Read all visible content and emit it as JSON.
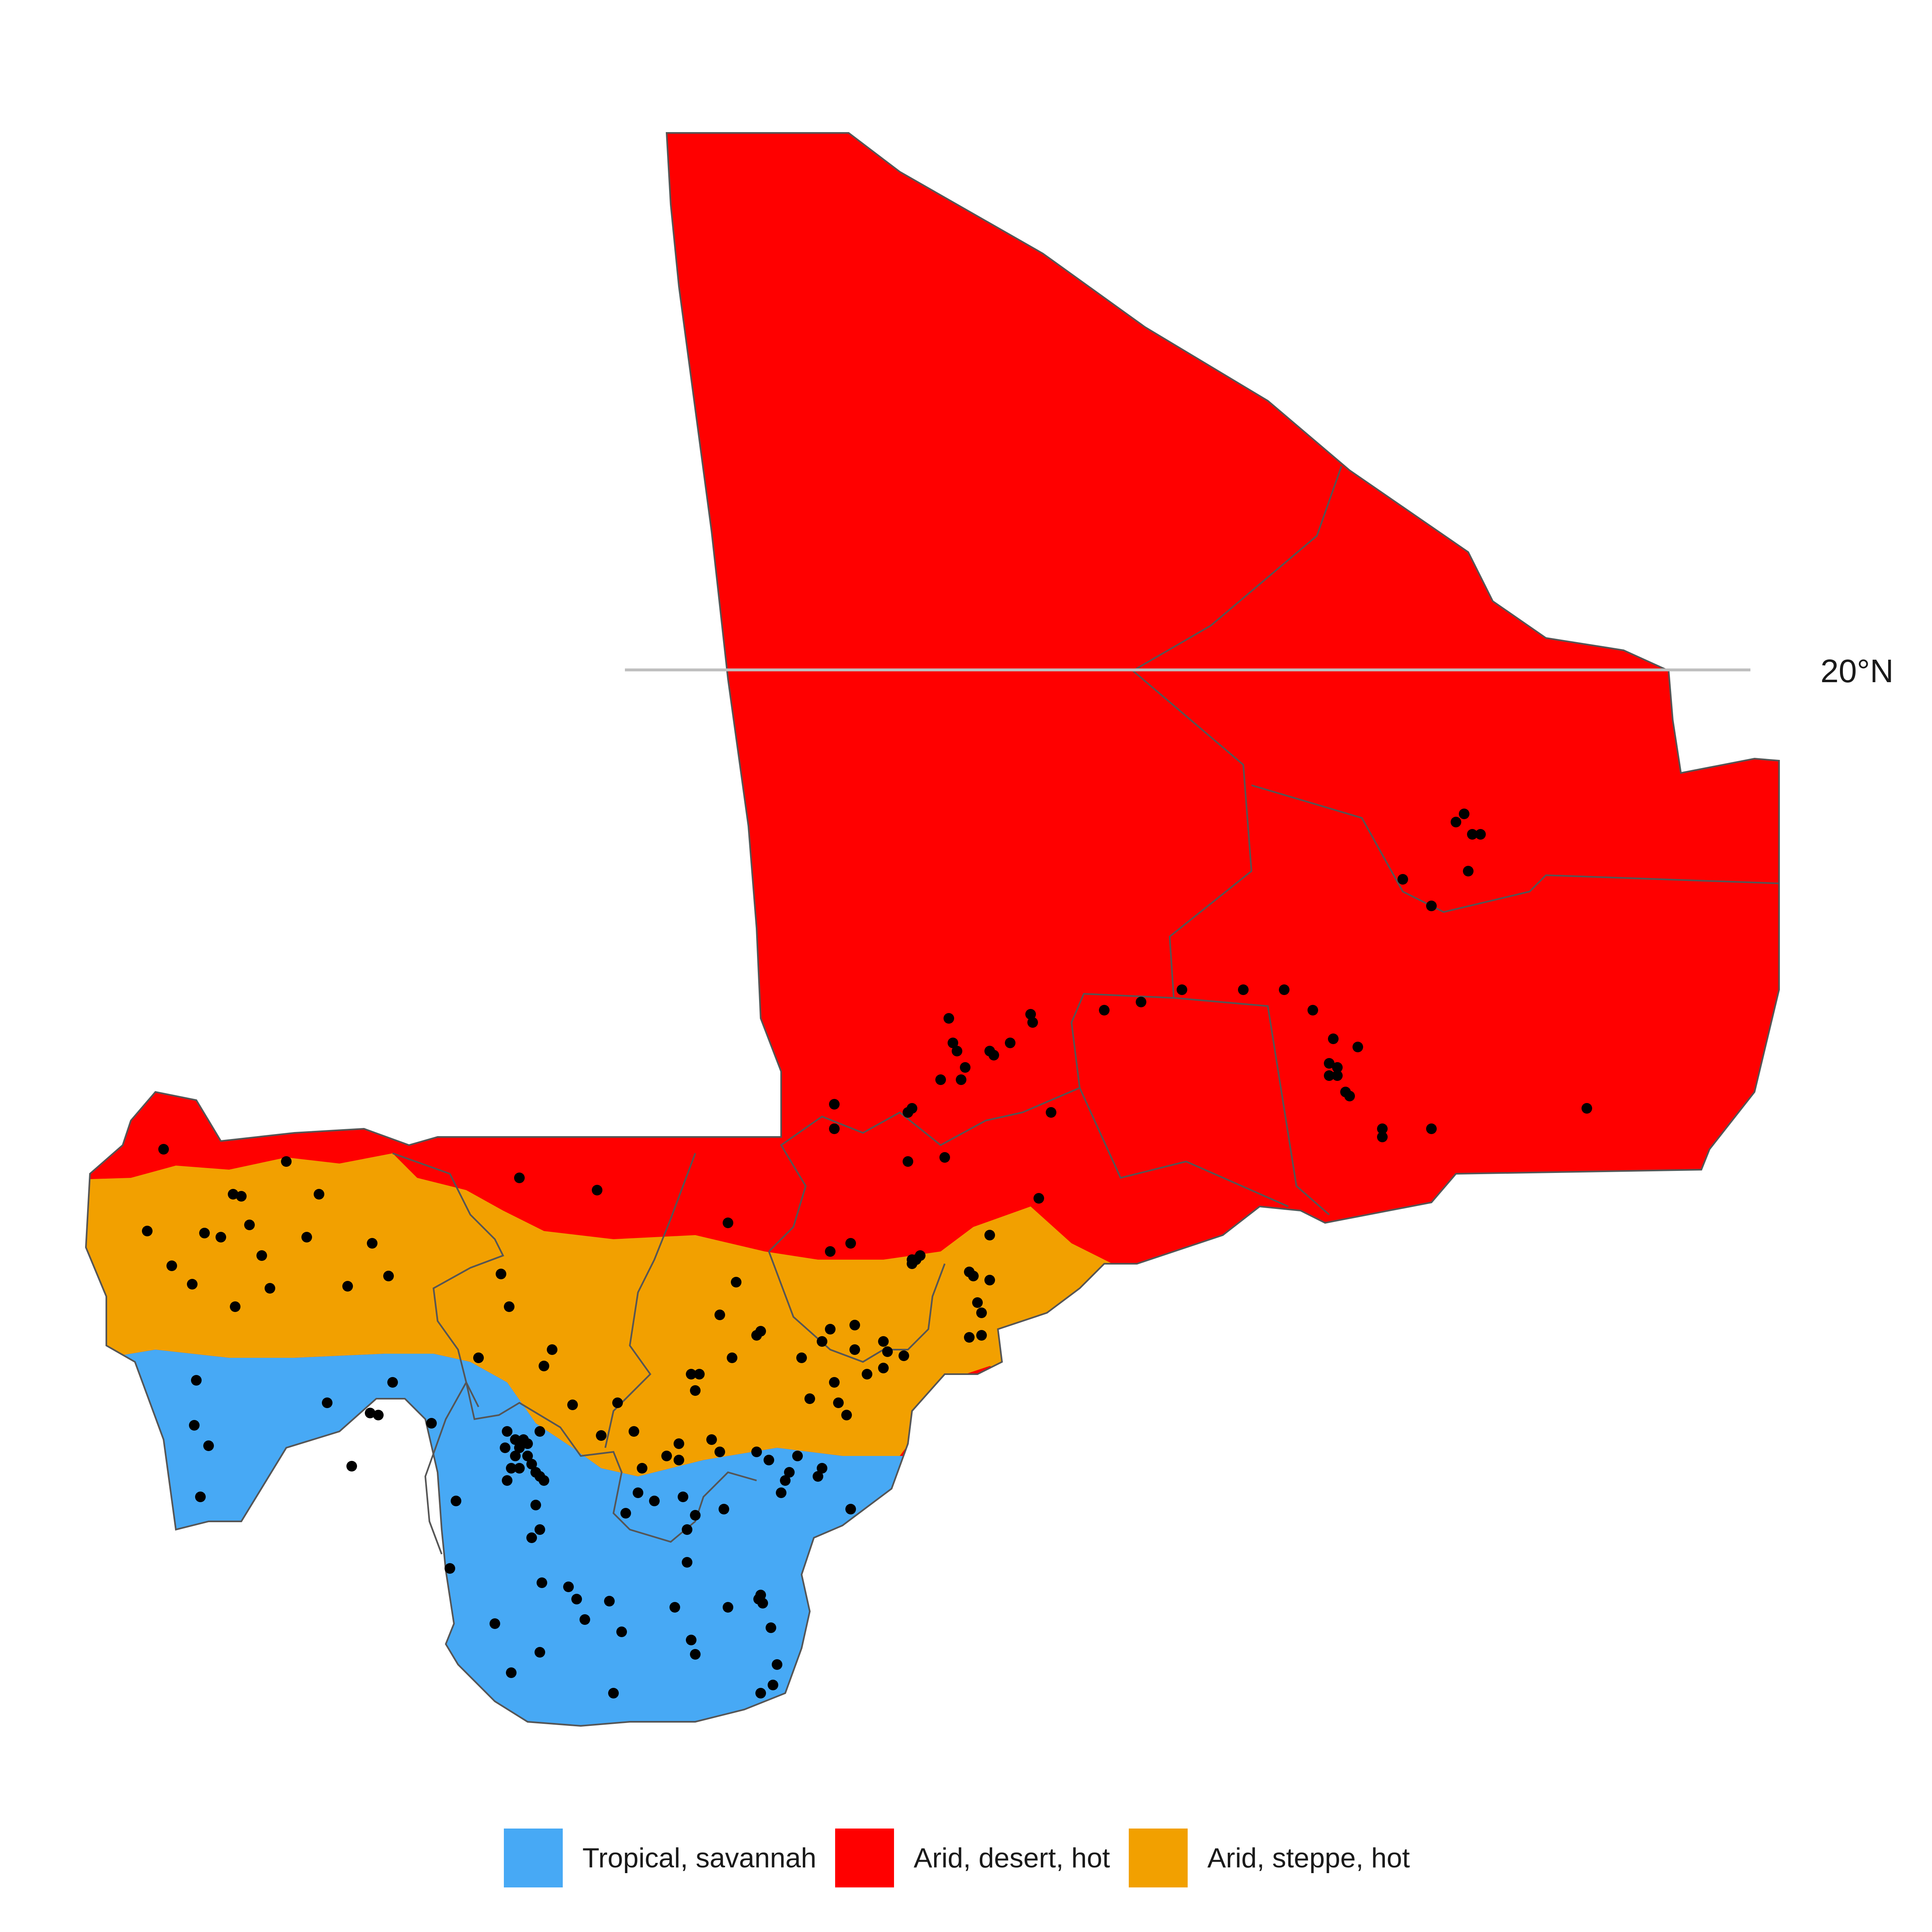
{
  "map": {
    "graticule": {
      "label": "20°N"
    },
    "legend": {
      "items": [
        {
          "label": "Tropical, savannah",
          "color": "#47A9F5"
        },
        {
          "label": "Arid, desert, hot",
          "color": "#FF0000"
        },
        {
          "label": "Arid, steppe, hot",
          "color": "#F2A000"
        }
      ]
    },
    "colors": {
      "desert": "#FF0000",
      "steppe": "#F2A000",
      "savannah": "#47A9F5",
      "borders": "#555555",
      "graticule": "#BEBEBE",
      "points": "#000000"
    },
    "point_icon": "black-dot-marker"
  }
}
